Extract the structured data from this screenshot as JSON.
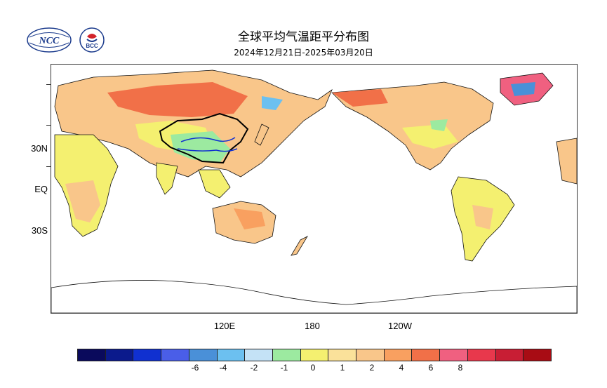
{
  "header": {
    "title": "全球平均气温距平分布图",
    "subtitle": "2024年12月21日-2025年03月20日"
  },
  "logos": {
    "ncc": {
      "text": "NCC",
      "color": "#1a3a8c"
    },
    "bcc": {
      "text": "BCC",
      "color": "#1a3a8c",
      "accent": "#d2232a"
    }
  },
  "map": {
    "y_labels": [
      "30N",
      "EQ",
      "30S"
    ],
    "x_labels": [
      "120E",
      "180",
      "120W"
    ]
  },
  "legend": {
    "labels": [
      "-6",
      "-4",
      "-2",
      "-1",
      "0",
      "1",
      "2",
      "4",
      "6",
      "8"
    ],
    "colors": [
      "#0a0a5c",
      "#0b1a8c",
      "#1030d0",
      "#4a5ee8",
      "#4a90d8",
      "#6cc0f0",
      "#c4e2f6",
      "#9ceaa0",
      "#f4f070",
      "#fae19a",
      "#f9c68a",
      "#f9a060",
      "#f17048",
      "#f06080",
      "#e8384c",
      "#c81e34",
      "#a80c14"
    ]
  }
}
